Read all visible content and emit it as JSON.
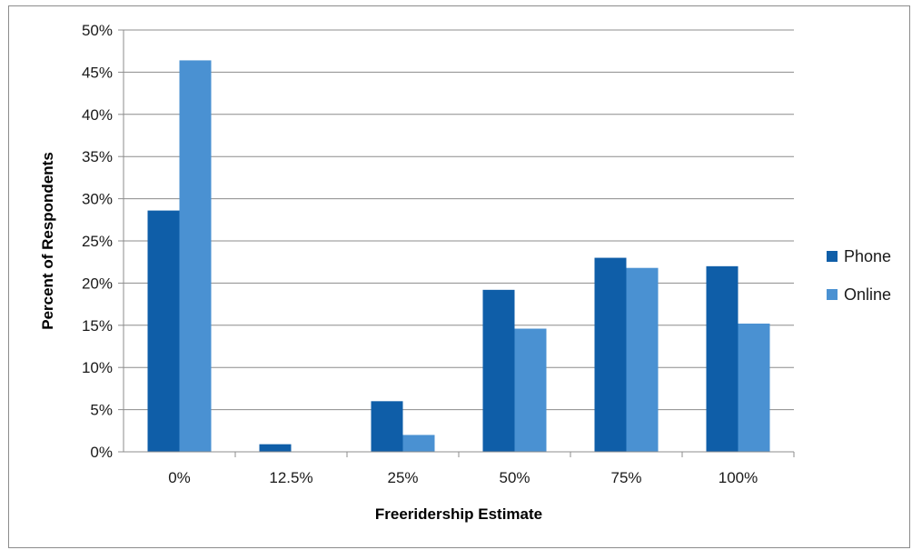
{
  "chart_data": {
    "type": "bar",
    "title": "",
    "xlabel": "Freeridership Estimate",
    "ylabel": "Percent of Respondents",
    "categories": [
      "0%",
      "12.5%",
      "25%",
      "50%",
      "75%",
      "100%"
    ],
    "series": [
      {
        "name": "Phone",
        "color": "#0f5ea8",
        "values": [
          28.6,
          0.9,
          6.0,
          19.2,
          23.0,
          22.0
        ]
      },
      {
        "name": "Online",
        "color": "#4a91d2",
        "values": [
          46.4,
          0.0,
          2.0,
          14.6,
          21.8,
          15.2
        ]
      }
    ],
    "ylim": [
      0,
      50
    ],
    "ytick_step": 5,
    "ytick_format": "percent",
    "grid": true,
    "legend_position": "right"
  }
}
